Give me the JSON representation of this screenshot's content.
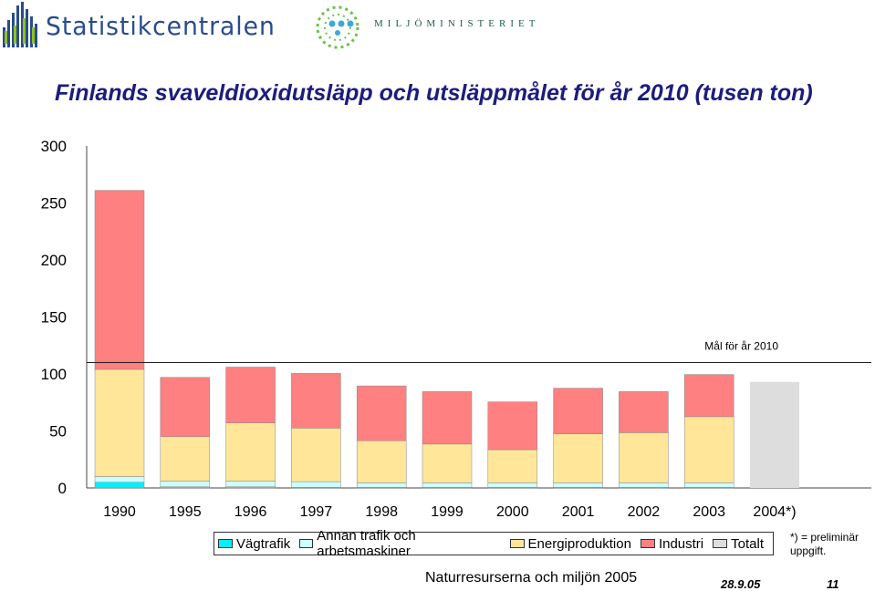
{
  "logos": {
    "left_text": "Statistikcentralen",
    "right_text": "MILJÖMINISTERIET"
  },
  "colors": {
    "title": "#1c1c7e",
    "vagtrafik": "#00f0ff",
    "annan_trafik": "#ccffff",
    "energiproduktion": "#ffe699",
    "industri": "#ff8080",
    "totalt": "#dddddd"
  },
  "chart_data": {
    "type": "bar",
    "stacked": true,
    "title": "Finlands svaveldioxidutsläpp och utsläppmålet för år 2010 (tusen ton)",
    "categories": [
      "1990",
      "1995",
      "1996",
      "1997",
      "1998",
      "1999",
      "2000",
      "2001",
      "2002",
      "2003",
      "2004*)"
    ],
    "ylim": [
      0,
      300
    ],
    "yticks": [
      "0",
      "50",
      "100",
      "150",
      "200",
      "250",
      "300"
    ],
    "series": [
      {
        "name": "Vägtrafik",
        "color": "#00f0ff",
        "values": [
          5,
          1,
          1,
          0.5,
          0.5,
          0.5,
          0.5,
          0.5,
          0.5,
          0.5,
          0
        ]
      },
      {
        "name": "Annan trafik och arbetsmaskiner",
        "color": "#ccffff",
        "values": [
          5,
          5,
          5,
          5,
          4,
          4,
          4,
          4,
          4,
          4,
          0
        ]
      },
      {
        "name": "Energiproduktion",
        "color": "#ffe699",
        "values": [
          94,
          39,
          51,
          47,
          37,
          34,
          29,
          43,
          44,
          58,
          0
        ]
      },
      {
        "name": "Industri",
        "color": "#ff8080",
        "values": [
          157,
          52,
          49,
          48,
          48,
          46,
          42,
          40,
          36,
          37,
          0
        ]
      },
      {
        "name": "Totalt",
        "color": "#dddddd",
        "values": [
          0,
          0,
          0,
          0,
          0,
          0,
          0,
          0,
          0,
          0,
          93
        ]
      }
    ],
    "target": {
      "value": 110,
      "label": "Mål för år 2010"
    },
    "legend_position": "bottom"
  },
  "note": "*) = preliminär uppgift.",
  "footer": "Naturresurserna och miljön 2005",
  "date": "28.9.05",
  "page_number": "11"
}
